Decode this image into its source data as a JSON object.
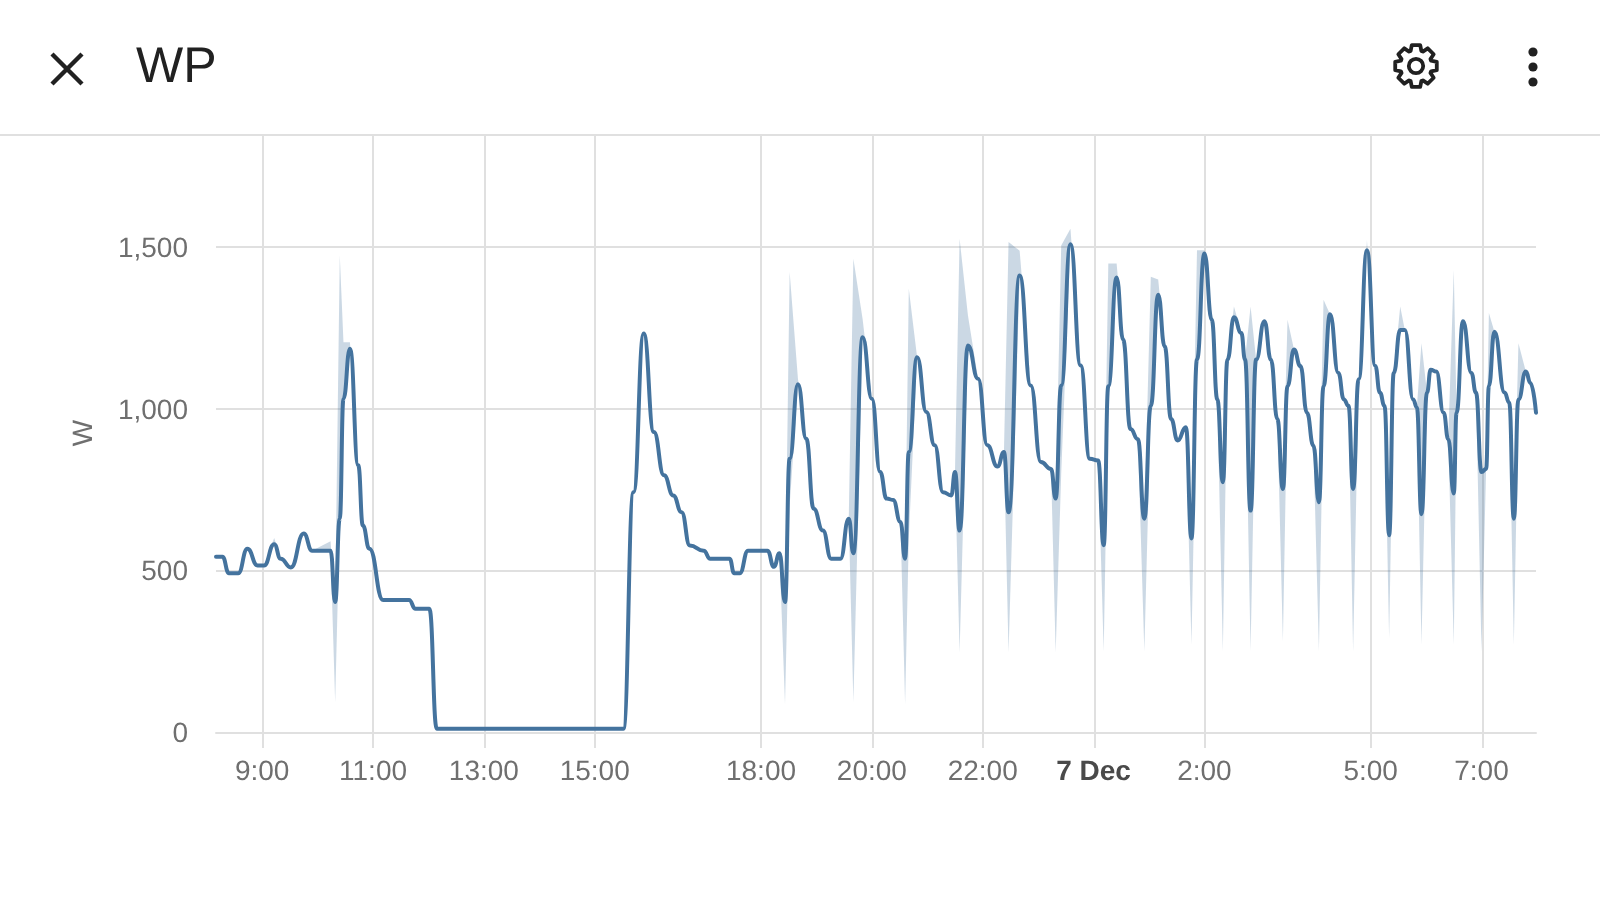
{
  "chart_data": {
    "type": "line",
    "title": "WP",
    "ylabel": "W",
    "x": [
      "--12-06T08:10",
      "--12-06T08:17",
      "--12-06T08:24",
      "--12-06T08:34",
      "--12-06T08:44",
      "--12-06T08:55",
      "--12-06T09:02",
      "--12-06T09:13",
      "--12-06T09:20",
      "--12-06T09:31",
      "--12-06T09:45",
      "--12-06T09:54",
      "--12-06T10:14",
      "--12-06T10:19",
      "--12-06T10:24",
      "--12-06T10:28",
      "--12-06T10:35",
      "--12-06T10:44",
      "--12-06T10:49",
      "--12-06T10:56",
      "--12-06T11:11",
      "--12-06T11:39",
      "--12-06T11:46",
      "--12-06T12:01",
      "--12-06T12:09",
      "--12-06T15:31",
      "--12-06T15:42",
      "--12-06T15:53",
      "--12-06T16:04",
      "--12-06T16:15",
      "--12-06T16:25",
      "--12-06T16:34",
      "--12-06T16:43",
      "--12-06T16:58",
      "--12-06T17:05",
      "--12-06T17:26",
      "--12-06T17:31",
      "--12-06T17:37",
      "--12-06T17:46",
      "--12-06T18:07",
      "--12-06T18:14",
      "--12-06T18:20",
      "--12-06T18:26",
      "--12-06T18:31",
      "--12-06T18:40",
      "--12-06T18:49",
      "--12-06T18:57",
      "--12-06T19:07",
      "--12-06T19:16",
      "--12-06T19:26",
      "--12-06T19:35",
      "--12-06T19:40",
      "--12-06T19:50",
      "--12-06T20:00",
      "--12-06T20:09",
      "--12-06T20:16",
      "--12-06T20:23",
      "--12-06T20:31",
      "--12-06T20:36",
      "--12-06T20:40",
      "--12-06T20:49",
      "--12-06T20:59",
      "--12-06T21:08",
      "--12-06T21:17",
      "--12-06T21:26",
      "--12-06T21:30",
      "--12-06T21:35",
      "--12-06T21:44",
      "--12-06T21:55",
      "--12-06T22:05",
      "--12-06T22:16",
      "--12-06T22:23",
      "--12-06T22:28",
      "--12-06T22:40",
      "--12-06T22:52",
      "--12-06T23:03",
      "--12-06T23:14",
      "--12-06T23:19",
      "--12-06T23:25",
      "--12-06T23:35",
      "--12-06T23:46",
      "--12-06T23:56",
      "--12-07T00:05",
      "--12-07T00:11",
      "--12-07T00:16",
      "--12-07T00:25",
      "--12-07T00:32",
      "--12-07T00:40",
      "--12-07T00:48",
      "--12-07T00:55",
      "--12-07T01:02",
      "--12-07T01:10",
      "--12-07T01:17",
      "--12-07T01:24",
      "--12-07T01:31",
      "--12-07T01:40",
      "--12-07T01:46",
      "--12-07T01:52",
      "--12-07T02:00",
      "--12-07T02:08",
      "--12-07T02:14",
      "--12-07T02:20",
      "--12-07T02:25",
      "--12-07T02:32",
      "--12-07T02:40",
      "--12-07T02:44",
      "--12-07T02:50",
      "--12-07T02:56",
      "--12-07T03:05",
      "--12-07T03:12",
      "--12-07T03:19",
      "--12-07T03:25",
      "--12-07T03:30",
      "--12-07T03:37",
      "--12-07T03:44",
      "--12-07T03:51",
      "--12-07T03:58",
      "--12-07T04:04",
      "--12-07T04:09",
      "--12-07T04:16",
      "--12-07T04:25",
      "--12-07T04:31",
      "--12-07T04:36",
      "--12-07T04:41",
      "--12-07T04:47",
      "--12-07T04:56",
      "--12-07T05:05",
      "--12-07T05:10",
      "--12-07T05:15",
      "--12-07T05:20",
      "--12-07T05:25",
      "--12-07T05:32",
      "--12-07T05:37",
      "--12-07T05:46",
      "--12-07T05:50",
      "--12-07T05:55",
      "--12-07T06:01",
      "--12-07T06:05",
      "--12-07T06:11",
      "--12-07T06:19",
      "--12-07T06:24",
      "--12-07T06:30",
      "--12-07T06:33",
      "--12-07T06:40",
      "--12-07T06:49",
      "--12-07T06:54",
      "--12-07T07:00",
      "--12-07T07:05",
      "--12-07T07:08",
      "--12-07T07:14",
      "--12-07T07:25",
      "--12-07T07:30",
      "--12-07T07:35",
      "--12-07T07:40",
      "--12-07T07:48",
      "--12-07T07:53",
      "--12-07T07:59"
    ],
    "xlim": [
      "--12-06T08:10",
      "--12-07T07:59"
    ],
    "xticks": [
      {
        "value": "--12-06T09:00",
        "label": "9:00"
      },
      {
        "value": "--12-06T11:00",
        "label": "11:00"
      },
      {
        "value": "--12-06T13:00",
        "label": "13:00"
      },
      {
        "value": "--12-06T15:00",
        "label": "15:00"
      },
      {
        "value": "--12-06T18:00",
        "label": "18:00"
      },
      {
        "value": "--12-06T20:00",
        "label": "20:00"
      },
      {
        "value": "--12-06T22:00",
        "label": "22:00"
      },
      {
        "value": "--12-07T00:00",
        "label": "7 Dec"
      },
      {
        "value": "--12-07T02:00",
        "label": "2:00"
      },
      {
        "value": "--12-07T05:00",
        "label": "5:00"
      },
      {
        "value": "--12-07T07:00",
        "label": "7:00"
      }
    ],
    "ylim": [
      0,
      1850
    ],
    "yticks": [
      0,
      500,
      {
        "value": 1000,
        "label": "1,000"
      },
      {
        "value": 1500,
        "label": "1,500"
      }
    ],
    "grid": true,
    "marker": "none",
    "line_style": "solid",
    "series": [
      {
        "color": "#44739e",
        "values": [
          542,
          542,
          491,
          491,
          567,
          515,
          515,
          581,
          536,
          509,
          614,
          561,
          561,
          402,
          660,
          1031,
          1186,
          825,
          639,
          567,
          408,
          408,
          381,
          381,
          10,
          10,
          742,
          1233,
          928,
          794,
          732,
          680,
          577,
          561,
          536,
          536,
          491,
          491,
          561,
          561,
          511,
          553,
          402,
          845,
          1076,
          907,
          691,
          623,
          536,
          536,
          660,
          553,
          1221,
          1031,
          804,
          722,
          718,
          650,
          536,
          866,
          1159,
          990,
          887,
          742,
          732,
          804,
          623,
          1196,
          1093,
          887,
          821,
          866,
          680,
          1412,
          1072,
          835,
          814,
          722,
          1072,
          1509,
          1134,
          845,
          840,
          578,
          1070,
          1406,
          1214,
          937,
          906,
          660,
          1009,
          1353,
          1193,
          968,
          902,
          943,
          599,
          1152,
          1480,
          1275,
          1029,
          773,
          1152,
          1283,
          1234,
          1152,
          685,
          1152,
          1271,
          1152,
          968,
          752,
          1070,
          1183,
          1132,
          988,
          886,
          711,
          1070,
          1292,
          1111,
          1029,
          1009,
          752,
          1091,
          1490,
          1132,
          1050,
          1009,
          609,
          1111,
          1244,
          1244,
          1029,
          1004,
          674,
          1050,
          1121,
          1115,
          988,
          906,
          738,
          988,
          1271,
          1111,
          1050,
          804,
          814,
          1070,
          1238,
          1050,
          1019,
          660,
          1029,
          1115,
          1080,
          988
        ],
        "lower": [
          542,
          542,
          491,
          491,
          567,
          515,
          515,
          581,
          536,
          509,
          614,
          561,
          561,
          93,
          660,
          1031,
          1186,
          825,
          639,
          567,
          408,
          408,
          381,
          381,
          10,
          10,
          742,
          1233,
          928,
          794,
          732,
          680,
          577,
          561,
          536,
          536,
          491,
          491,
          561,
          561,
          511,
          553,
          87,
          700,
          1076,
          907,
          691,
          623,
          536,
          536,
          660,
          93,
          1221,
          1031,
          804,
          722,
          718,
          650,
          87,
          600,
          1159,
          990,
          887,
          742,
          732,
          804,
          247,
          1196,
          1093,
          887,
          821,
          866,
          247,
          1412,
          1072,
          835,
          814,
          247,
          800,
          1509,
          1134,
          845,
          840,
          250,
          1070,
          1406,
          1214,
          937,
          906,
          250,
          1009,
          1353,
          1193,
          968,
          902,
          943,
          270,
          1152,
          1480,
          1275,
          1029,
          250,
          1152,
          1283,
          1234,
          1152,
          250,
          1152,
          1271,
          1152,
          968,
          281,
          1070,
          1183,
          1132,
          988,
          886,
          250,
          1070,
          1292,
          1111,
          1029,
          1009,
          250,
          1091,
          1490,
          1132,
          1050,
          1009,
          291,
          1111,
          1244,
          1244,
          1029,
          1004,
          270,
          1050,
          1121,
          1115,
          988,
          906,
          270,
          988,
          1271,
          1111,
          1050,
          250,
          814,
          1070,
          1238,
          1050,
          1019,
          270,
          1029,
          1115,
          1080,
          988
        ],
        "upper": [
          542,
          542,
          491,
          491,
          567,
          515,
          515,
          600,
          536,
          509,
          614,
          561,
          590,
          402,
          1474,
          1206,
          1206,
          825,
          639,
          567,
          408,
          408,
          381,
          381,
          10,
          10,
          742,
          1233,
          928,
          794,
          732,
          680,
          577,
          561,
          536,
          536,
          491,
          491,
          561,
          561,
          511,
          553,
          402,
          1423,
          1093,
          907,
          691,
          623,
          536,
          536,
          660,
          1464,
          1278,
          1031,
          804,
          722,
          718,
          650,
          536,
          1371,
          1159,
          990,
          887,
          742,
          732,
          804,
          1526,
          1289,
          1093,
          887,
          821,
          866,
          1516,
          1489,
          1072,
          835,
          814,
          722,
          1505,
          1557,
          1134,
          845,
          840,
          578,
          1449,
          1449,
          1214,
          937,
          906,
          660,
          1408,
          1400,
          1193,
          968,
          902,
          943,
          599,
          1490,
          1490,
          1275,
          1029,
          773,
          1152,
          1316,
          1234,
          1152,
          1316,
          1152,
          1271,
          1152,
          968,
          752,
          1275,
          1183,
          1132,
          988,
          886,
          711,
          1337,
          1292,
          1111,
          1029,
          1009,
          752,
          1091,
          1521,
          1132,
          1050,
          1009,
          609,
          1111,
          1316,
          1244,
          1029,
          1004,
          1203,
          1050,
          1121,
          1115,
          988,
          906,
          1429,
          988,
          1271,
          1111,
          1050,
          804,
          814,
          1296,
          1238,
          1050,
          1019,
          660,
          1203,
          1115,
          1080,
          988
        ]
      }
    ]
  }
}
